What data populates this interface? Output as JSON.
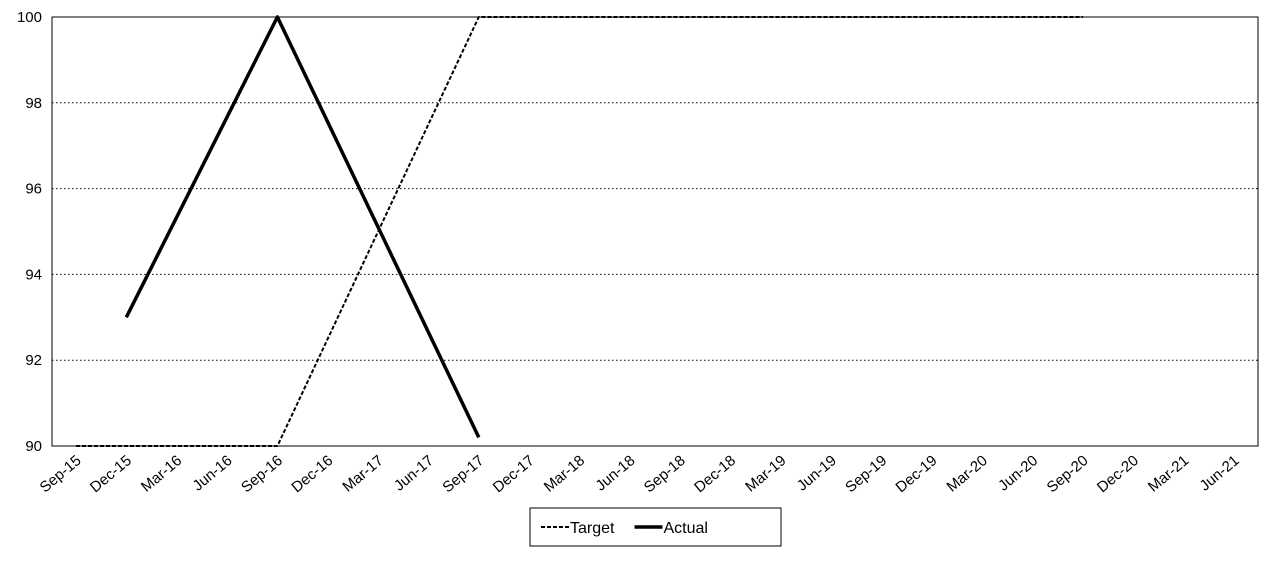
{
  "chart_data": {
    "type": "line",
    "x_type": "date",
    "x": [
      "Sep-15",
      "Dec-15",
      "Mar-16",
      "Jun-16",
      "Sep-16",
      "Dec-16",
      "Mar-17",
      "Jun-17",
      "Sep-17",
      "Dec-17",
      "Mar-18",
      "Jun-18",
      "Sep-18",
      "Dec-18",
      "Mar-19",
      "Jun-19",
      "Sep-19",
      "Dec-19",
      "Mar-20",
      "Jun-20",
      "Sep-20",
      "Dec-20",
      "Mar-21",
      "Jun-21"
    ],
    "series": [
      {
        "name": "Target",
        "line_style": "dashed",
        "color": "#000000",
        "points": [
          {
            "x": "Sep-15",
            "y": 90
          },
          {
            "x": "Sep-16",
            "y": 90
          },
          {
            "x": "Sep-17",
            "y": 100
          },
          {
            "x": "Sep-20",
            "y": 100
          }
        ]
      },
      {
        "name": "Actual",
        "line_style": "solid",
        "color": "#000000",
        "points": [
          {
            "x": "Dec-15",
            "y": 93
          },
          {
            "x": "Sep-16",
            "y": 100
          },
          {
            "x": "Sep-17",
            "y": 90.2
          }
        ]
      }
    ],
    "ylim": [
      90,
      100
    ],
    "y_ticks": [
      90,
      92,
      94,
      96,
      98,
      100
    ],
    "grid": {
      "horizontal": true,
      "style": "dotted"
    },
    "legend_position": "bottom-center",
    "title": "",
    "xlabel": "",
    "ylabel": ""
  }
}
